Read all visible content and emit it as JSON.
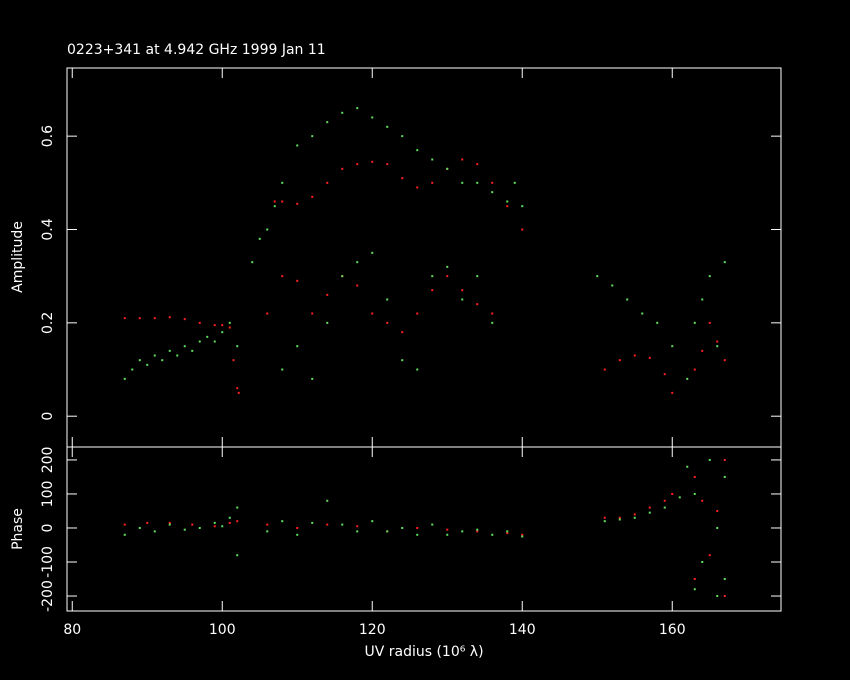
{
  "chart_data": [
    {
      "type": "scatter",
      "title": "0223+341 at 4.942 GHz 1999 Jan 11",
      "ylabel": "Amplitude",
      "xlim": [
        79.3,
        174.5
      ],
      "ylim": [
        -0.066,
        0.746
      ],
      "yticks": [
        0,
        0.2,
        0.4,
        0.6
      ],
      "series": [
        {
          "color": "#ff2020",
          "x": [
            87,
            89,
            91,
            93,
            95,
            97,
            99,
            100,
            101,
            101.5,
            102,
            102.2,
            107,
            108,
            110,
            112,
            114,
            116,
            118,
            120,
            122,
            124,
            126,
            128,
            130,
            132,
            134,
            136,
            138,
            140,
            106,
            108,
            110,
            112,
            114,
            116,
            118,
            120,
            122,
            124,
            126,
            128,
            130,
            132,
            134,
            136,
            151,
            153,
            155,
            157,
            159,
            160,
            163,
            164,
            165,
            166,
            167
          ],
          "y": [
            0.21,
            0.21,
            0.21,
            0.212,
            0.208,
            0.2,
            0.195,
            0.195,
            0.19,
            0.12,
            0.06,
            0.05,
            0.46,
            0.46,
            0.455,
            0.47,
            0.5,
            0.53,
            0.54,
            0.545,
            0.54,
            0.51,
            0.49,
            0.5,
            0.53,
            0.55,
            0.54,
            0.5,
            0.45,
            0.4,
            0.22,
            0.3,
            0.29,
            0.22,
            0.26,
            0.3,
            0.28,
            0.22,
            0.2,
            0.18,
            0.22,
            0.27,
            0.3,
            0.27,
            0.24,
            0.22,
            0.1,
            0.12,
            0.13,
            0.125,
            0.09,
            0.05,
            0.1,
            0.14,
            0.2,
            0.16,
            0.12
          ]
        },
        {
          "color": "#60e060",
          "x": [
            87,
            88,
            89,
            90,
            91,
            92,
            93,
            94,
            95,
            96,
            97,
            98,
            99,
            100,
            101,
            102,
            104,
            105,
            106,
            107,
            108,
            110,
            112,
            114,
            116,
            118,
            120,
            122,
            124,
            126,
            128,
            130,
            132,
            134,
            136,
            138,
            139,
            140,
            108,
            110,
            112,
            114,
            116,
            118,
            120,
            122,
            124,
            126,
            128,
            130,
            132,
            134,
            136,
            150,
            152,
            154,
            156,
            158,
            160,
            162,
            163,
            164,
            165,
            166,
            167
          ],
          "y": [
            0.08,
            0.1,
            0.12,
            0.11,
            0.13,
            0.12,
            0.14,
            0.13,
            0.15,
            0.14,
            0.16,
            0.17,
            0.16,
            0.18,
            0.2,
            0.15,
            0.33,
            0.38,
            0.4,
            0.45,
            0.5,
            0.58,
            0.6,
            0.63,
            0.65,
            0.66,
            0.64,
            0.62,
            0.6,
            0.57,
            0.55,
            0.53,
            0.5,
            0.5,
            0.48,
            0.46,
            0.5,
            0.45,
            0.1,
            0.15,
            0.08,
            0.2,
            0.3,
            0.33,
            0.35,
            0.25,
            0.12,
            0.1,
            0.3,
            0.32,
            0.25,
            0.3,
            0.2,
            0.3,
            0.28,
            0.25,
            0.22,
            0.2,
            0.15,
            0.08,
            0.2,
            0.25,
            0.3,
            0.15,
            0.33
          ]
        }
      ]
    },
    {
      "type": "scatter",
      "ylabel": "Phase",
      "xlabel": "UV radius  (10⁶ λ)",
      "xlim": [
        79.3,
        174.5
      ],
      "xticks": [
        80,
        100,
        120,
        140,
        160
      ],
      "ylim": [
        -244,
        238
      ],
      "yticks": [
        200,
        100,
        0,
        -100,
        -200
      ],
      "series": [
        {
          "color": "#ff2020",
          "x": [
            87,
            90,
            93,
            96,
            99,
            101,
            102,
            106,
            110,
            114,
            118,
            122,
            126,
            130,
            134,
            138,
            140,
            151,
            153,
            155,
            157,
            159,
            160,
            163,
            163,
            164,
            165,
            166,
            167,
            167
          ],
          "y": [
            10,
            15,
            15,
            10,
            5,
            15,
            20,
            10,
            0,
            10,
            5,
            -10,
            0,
            -5,
            -10,
            -15,
            -20,
            30,
            30,
            40,
            60,
            80,
            100,
            150,
            -150,
            80,
            -80,
            50,
            -200,
            200
          ]
        },
        {
          "color": "#60e060",
          "x": [
            87,
            89,
            91,
            93,
            95,
            97,
            99,
            100,
            101,
            102,
            102,
            106,
            108,
            110,
            112,
            114,
            116,
            118,
            120,
            122,
            124,
            126,
            128,
            130,
            132,
            134,
            136,
            138,
            140,
            151,
            153,
            155,
            157,
            159,
            161,
            162,
            163,
            163,
            164,
            165,
            166,
            166,
            167,
            167
          ],
          "y": [
            -20,
            0,
            -10,
            10,
            -5,
            0,
            15,
            5,
            30,
            60,
            -80,
            -10,
            20,
            -20,
            15,
            80,
            10,
            -10,
            20,
            -10,
            0,
            -20,
            10,
            -20,
            -10,
            -5,
            -20,
            -10,
            -25,
            20,
            25,
            30,
            45,
            60,
            90,
            180,
            -180,
            100,
            -100,
            200,
            -200,
            0,
            150,
            -150
          ]
        }
      ]
    }
  ]
}
